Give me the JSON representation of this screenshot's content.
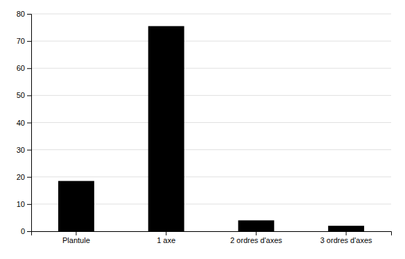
{
  "chart_data": {
    "type": "bar",
    "categories": [
      "Plantule",
      "1 axe",
      "2 ordres d'axes",
      "3 ordres d'axes"
    ],
    "values": [
      18.5,
      75.5,
      4.0,
      2.0
    ],
    "color": "#000000",
    "ylim": [
      0,
      80
    ],
    "yticks": [
      0,
      10,
      20,
      30,
      40,
      50,
      60,
      70,
      80
    ],
    "grid": true
  }
}
